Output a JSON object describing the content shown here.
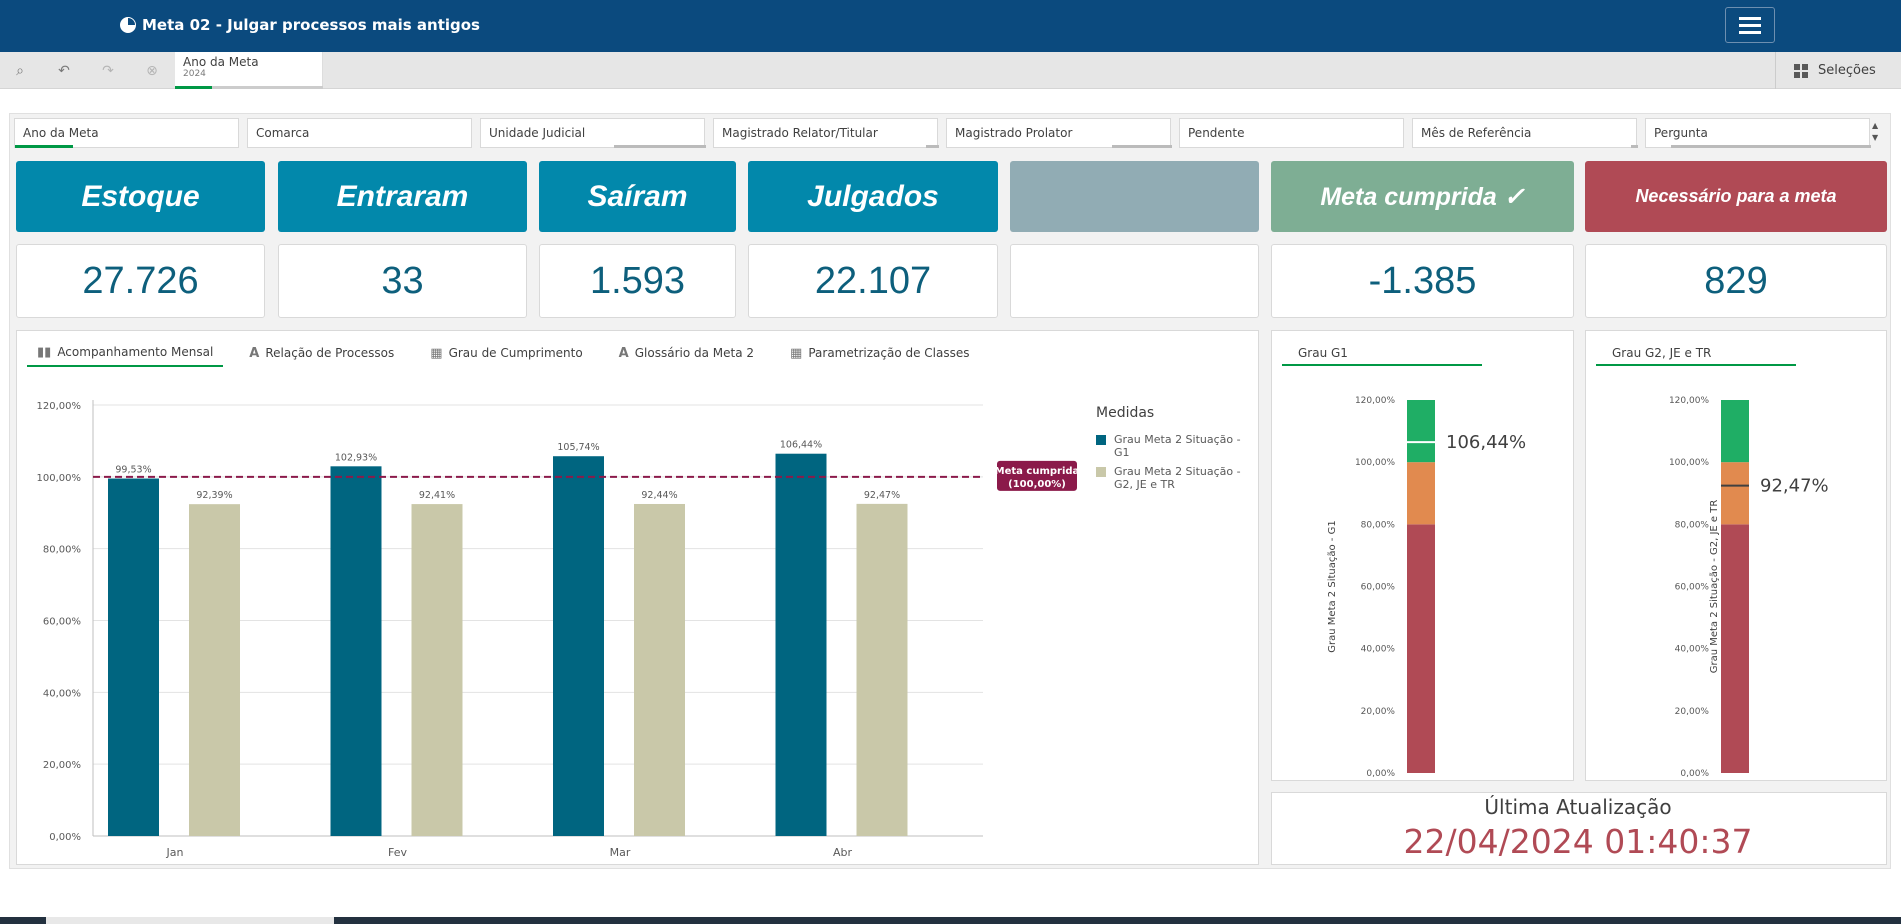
{
  "header": {
    "title": "Meta 02 - Julgar processos mais antigos"
  },
  "toolbar": {
    "current_selection": {
      "label": "Ano da Meta",
      "value": "2024"
    },
    "selections_label": "Seleções"
  },
  "filters": [
    "Ano da Meta",
    "Comarca",
    "Unidade Judicial",
    "Magistrado Relator/Titular",
    "Magistrado Prolator",
    "Pendente",
    "Mês de Referência",
    "Pergunta"
  ],
  "kpis": [
    {
      "label": "Estoque",
      "value": "27.726",
      "color": "#0288ab"
    },
    {
      "label": "Entraram",
      "value": "33",
      "color": "#0288ab"
    },
    {
      "label": "Saíram",
      "value": "1.593",
      "color": "#0288ab"
    },
    {
      "label": "Julgados",
      "value": "22.107",
      "color": "#0288ab"
    },
    {
      "label": "",
      "value": "",
      "color": "#91acb4"
    },
    {
      "label": "Meta cumprida ✓",
      "value": "-1.385",
      "color": "#7eae94"
    },
    {
      "label": "Necessário para a meta",
      "value": "829",
      "color": "#b04a55"
    }
  ],
  "tabs": [
    {
      "label": "Acompanhamento Mensal",
      "icon": "bar-chart-icon"
    },
    {
      "label": "Relação de Processos",
      "icon": "text-a-icon"
    },
    {
      "label": "Grau de Cumprimento",
      "icon": "table-icon"
    },
    {
      "label": "Glossário da Meta 2",
      "icon": "text-a-icon"
    },
    {
      "label": "Parametrização de Classes",
      "icon": "table-icon"
    }
  ],
  "chart_data": [
    {
      "type": "bar",
      "categories": [
        "Jan",
        "Fev",
        "Mar",
        "Abr"
      ],
      "series": [
        {
          "name": "Grau Meta 2 Situação - G1",
          "values": [
            99.53,
            102.93,
            105.74,
            106.44
          ],
          "labels": [
            "99,53%",
            "102,93%",
            "105,74%",
            "106,44%"
          ],
          "color": "#006580"
        },
        {
          "name": "Grau Meta 2 Situação - G2, JE e TR",
          "values": [
            92.39,
            92.41,
            92.44,
            92.47
          ],
          "labels": [
            "92,39%",
            "92,41%",
            "92,44%",
            "92,47%"
          ],
          "color": "#c9c8a9"
        }
      ],
      "ylim": [
        0,
        120
      ],
      "yticks": [
        "0,00%",
        "20,00%",
        "40,00%",
        "60,00%",
        "80,00%",
        "100,00%",
        "120,00%"
      ],
      "reference_line": {
        "value": 100,
        "label_1": "Meta cumprida",
        "label_2": "(100,00%)",
        "color": "#8b1a4a"
      },
      "legend_title": "Medidas",
      "legend_position": "right",
      "grid": true
    },
    {
      "type": "gauge",
      "title": "Grau G1",
      "ylabel": "Grau Meta 2 Situação - G1",
      "value": 106.44,
      "value_label": "106,44%",
      "ylim": [
        0,
        120
      ],
      "bands": [
        {
          "from": 0,
          "to": 80,
          "color": "#b04a55"
        },
        {
          "from": 80,
          "to": 100,
          "color": "#e18a4f"
        },
        {
          "from": 100,
          "to": 120,
          "color": "#1fae65"
        }
      ],
      "yticks": [
        "0,00%",
        "20,00%",
        "40,00%",
        "60,00%",
        "80,00%",
        "100,00%",
        "120,00%"
      ]
    },
    {
      "type": "gauge",
      "title": "Grau G2, JE e TR",
      "ylabel": "Grau Meta 2 Situação - G2, JE e TR",
      "value": 92.47,
      "value_label": "92,47%",
      "ylim": [
        0,
        120
      ],
      "bands": [
        {
          "from": 0,
          "to": 80,
          "color": "#b04a55"
        },
        {
          "from": 80,
          "to": 100,
          "color": "#e18a4f"
        },
        {
          "from": 100,
          "to": 120,
          "color": "#1fae65"
        }
      ],
      "yticks": [
        "0,00%",
        "20,00%",
        "40,00%",
        "60,00%",
        "80,00%",
        "100,00%",
        "120,00%"
      ]
    }
  ],
  "update": {
    "title": "Última Atualização",
    "value": "22/04/2024 01:40:37"
  }
}
